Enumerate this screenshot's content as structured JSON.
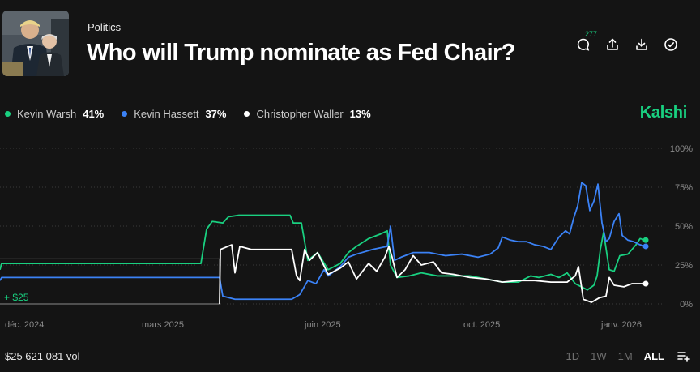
{
  "header": {
    "category": "Politics",
    "title": "Who will Trump nominate as Fed Chair?",
    "comment_count": "277"
  },
  "actions": {
    "comments_icon": "comment-icon",
    "share_icon": "share-icon",
    "download_icon": "download-icon",
    "check_icon": "check-circle-icon"
  },
  "legend": [
    {
      "name": "Kevin Warsh",
      "pct": "41%",
      "color": "#19d080"
    },
    {
      "name": "Kevin Hassett",
      "pct": "37%",
      "color": "#3b82f6"
    },
    {
      "name": "Christopher Waller",
      "pct": "13%",
      "color": "#ffffff"
    }
  ],
  "brand": "Kalshi",
  "footer": {
    "volume": "$25 621 081 vol",
    "ranges": [
      "1D",
      "1W",
      "1M",
      "ALL"
    ],
    "active_range": "ALL"
  },
  "chart_data": {
    "type": "line",
    "ylim": [
      0,
      100
    ],
    "y_ticks": [
      "100%",
      "75%",
      "50%",
      "25%",
      "0%"
    ],
    "x_ticks": [
      "déc. 2024",
      "mars 2025",
      "juin 2025",
      "oct. 2025",
      "janv. 2026"
    ],
    "annotation": "+ $25",
    "series": [
      {
        "name": "Kevin Warsh",
        "color": "#19d080",
        "points": [
          [
            0,
            22
          ],
          [
            2,
            26
          ],
          [
            120,
            26
          ],
          [
            248,
            26
          ],
          [
            255,
            48
          ],
          [
            262,
            53
          ],
          [
            275,
            52
          ],
          [
            282,
            56
          ],
          [
            295,
            57
          ],
          [
            358,
            57
          ],
          [
            362,
            52
          ],
          [
            372,
            52
          ],
          [
            380,
            28
          ],
          [
            392,
            33
          ],
          [
            405,
            22
          ],
          [
            420,
            26
          ],
          [
            430,
            33
          ],
          [
            440,
            37
          ],
          [
            455,
            42
          ],
          [
            470,
            45
          ],
          [
            478,
            47
          ],
          [
            482,
            25
          ],
          [
            490,
            17
          ],
          [
            505,
            18
          ],
          [
            520,
            20
          ],
          [
            540,
            18
          ],
          [
            560,
            18
          ],
          [
            580,
            18
          ],
          [
            600,
            16
          ],
          [
            620,
            14
          ],
          [
            640,
            14
          ],
          [
            655,
            18
          ],
          [
            665,
            17
          ],
          [
            680,
            19
          ],
          [
            690,
            17
          ],
          [
            700,
            20
          ],
          [
            710,
            13
          ],
          [
            725,
            9
          ],
          [
            733,
            12
          ],
          [
            737,
            18
          ],
          [
            741,
            35
          ],
          [
            745,
            46
          ],
          [
            752,
            22
          ],
          [
            758,
            21
          ],
          [
            765,
            31
          ],
          [
            775,
            32
          ],
          [
            785,
            38
          ],
          [
            790,
            42
          ],
          [
            797,
            41
          ]
        ]
      },
      {
        "name": "Kevin Hassett",
        "color": "#3b82f6",
        "points": [
          [
            0,
            15
          ],
          [
            2,
            17
          ],
          [
            10,
            17
          ],
          [
            120,
            17
          ],
          [
            271,
            17
          ],
          [
            275,
            5
          ],
          [
            290,
            3
          ],
          [
            330,
            3
          ],
          [
            360,
            3
          ],
          [
            370,
            6
          ],
          [
            380,
            15
          ],
          [
            390,
            13
          ],
          [
            400,
            22
          ],
          [
            405,
            18
          ],
          [
            410,
            20
          ],
          [
            420,
            24
          ],
          [
            430,
            30
          ],
          [
            440,
            32
          ],
          [
            460,
            35
          ],
          [
            478,
            37
          ],
          [
            482,
            50
          ],
          [
            487,
            28
          ],
          [
            495,
            30
          ],
          [
            510,
            33
          ],
          [
            530,
            33
          ],
          [
            550,
            31
          ],
          [
            570,
            32
          ],
          [
            590,
            30
          ],
          [
            605,
            32
          ],
          [
            615,
            36
          ],
          [
            620,
            43
          ],
          [
            630,
            41
          ],
          [
            640,
            40
          ],
          [
            650,
            40
          ],
          [
            660,
            38
          ],
          [
            670,
            37
          ],
          [
            680,
            35
          ],
          [
            690,
            43
          ],
          [
            698,
            47
          ],
          [
            703,
            45
          ],
          [
            708,
            55
          ],
          [
            713,
            63
          ],
          [
            718,
            78
          ],
          [
            723,
            76
          ],
          [
            728,
            60
          ],
          [
            733,
            66
          ],
          [
            738,
            77
          ],
          [
            743,
            52
          ],
          [
            748,
            40
          ],
          [
            752,
            42
          ],
          [
            758,
            53
          ],
          [
            764,
            58
          ],
          [
            768,
            44
          ],
          [
            775,
            41
          ],
          [
            782,
            40
          ],
          [
            790,
            38
          ],
          [
            797,
            37
          ]
        ]
      },
      {
        "name": "Christopher Waller",
        "color": "#ffffff",
        "points": [
          [
            271,
            0
          ],
          [
            272,
            35
          ],
          [
            286,
            38
          ],
          [
            290,
            20
          ],
          [
            296,
            37
          ],
          [
            310,
            35
          ],
          [
            360,
            35
          ],
          [
            366,
            18
          ],
          [
            370,
            15
          ],
          [
            376,
            35
          ],
          [
            382,
            28
          ],
          [
            392,
            33
          ],
          [
            405,
            19
          ],
          [
            420,
            23
          ],
          [
            430,
            27
          ],
          [
            440,
            16
          ],
          [
            455,
            26
          ],
          [
            465,
            21
          ],
          [
            475,
            30
          ],
          [
            480,
            37
          ],
          [
            484,
            30
          ],
          [
            490,
            17
          ],
          [
            500,
            22
          ],
          [
            510,
            31
          ],
          [
            520,
            25
          ],
          [
            535,
            27
          ],
          [
            545,
            20
          ],
          [
            560,
            19
          ],
          [
            580,
            17
          ],
          [
            600,
            16
          ],
          [
            620,
            14
          ],
          [
            640,
            15
          ],
          [
            660,
            15
          ],
          [
            680,
            14
          ],
          [
            700,
            14
          ],
          [
            710,
            18
          ],
          [
            714,
            24
          ],
          [
            720,
            3
          ],
          [
            730,
            1
          ],
          [
            740,
            4
          ],
          [
            748,
            5
          ],
          [
            752,
            17
          ],
          [
            758,
            12
          ],
          [
            770,
            11
          ],
          [
            780,
            13
          ],
          [
            797,
            13
          ]
        ]
      }
    ]
  }
}
